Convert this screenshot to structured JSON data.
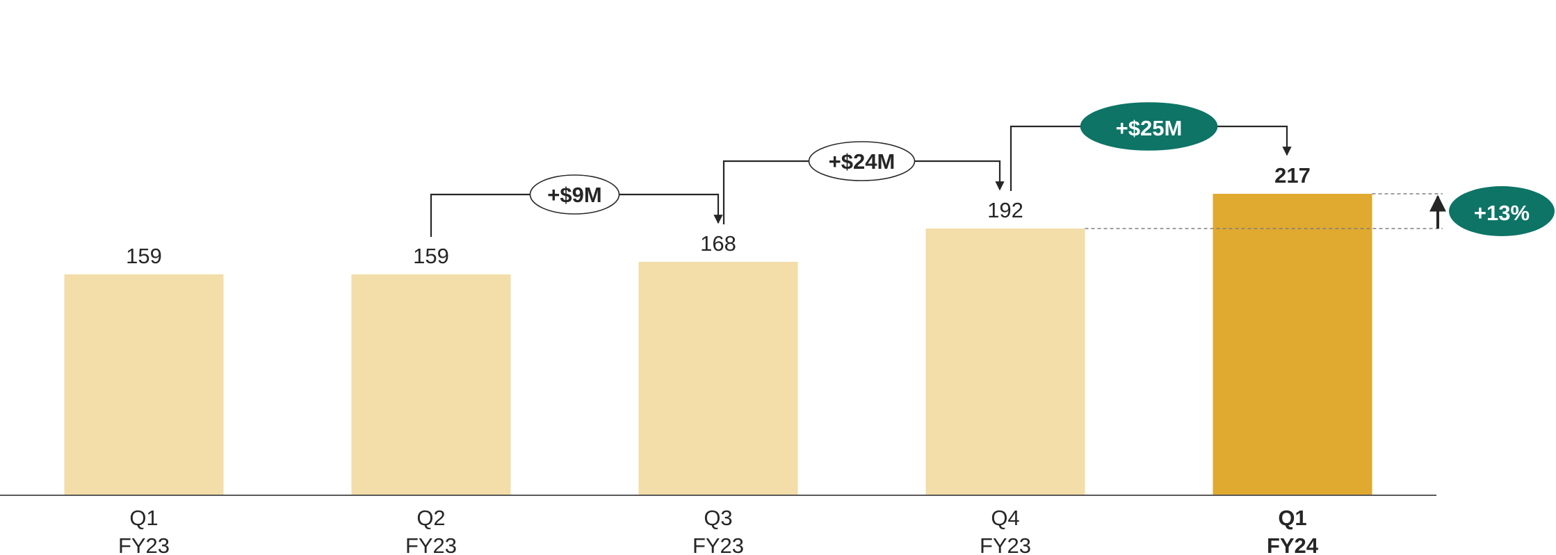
{
  "chart_data": {
    "type": "bar",
    "categories": [
      {
        "line1": "Q1",
        "line2": "FY23"
      },
      {
        "line1": "Q2",
        "line2": "FY23"
      },
      {
        "line1": "Q3",
        "line2": "FY23"
      },
      {
        "line1": "Q4",
        "line2": "FY23"
      },
      {
        "line1": "Q1",
        "line2": "FY24"
      }
    ],
    "values": [
      159,
      159,
      168,
      192,
      217
    ],
    "value_labels": [
      "159",
      "159",
      "168",
      "192",
      "217"
    ],
    "highlight_index": 4,
    "ylim": [
      0,
      250
    ],
    "grid": false,
    "colors": {
      "bar": "#f3dda8",
      "bar_highlight": "#e0a92f",
      "axis": "#595959",
      "connector": "#262626",
      "callout_fill": "#0d7466",
      "callout_text": "#ffffff",
      "bubble_fill": "#ffffff",
      "bubble_text": "#262626"
    },
    "deltas": [
      {
        "from": 1,
        "to": 2,
        "label": "+$9M",
        "style": "outline"
      },
      {
        "from": 2,
        "to": 3,
        "label": "+$24M",
        "style": "outline"
      },
      {
        "from": 3,
        "to": 4,
        "label": "+$25M",
        "style": "filled"
      }
    ],
    "growth": {
      "from": 3,
      "to": 4,
      "label": "+13%"
    }
  }
}
